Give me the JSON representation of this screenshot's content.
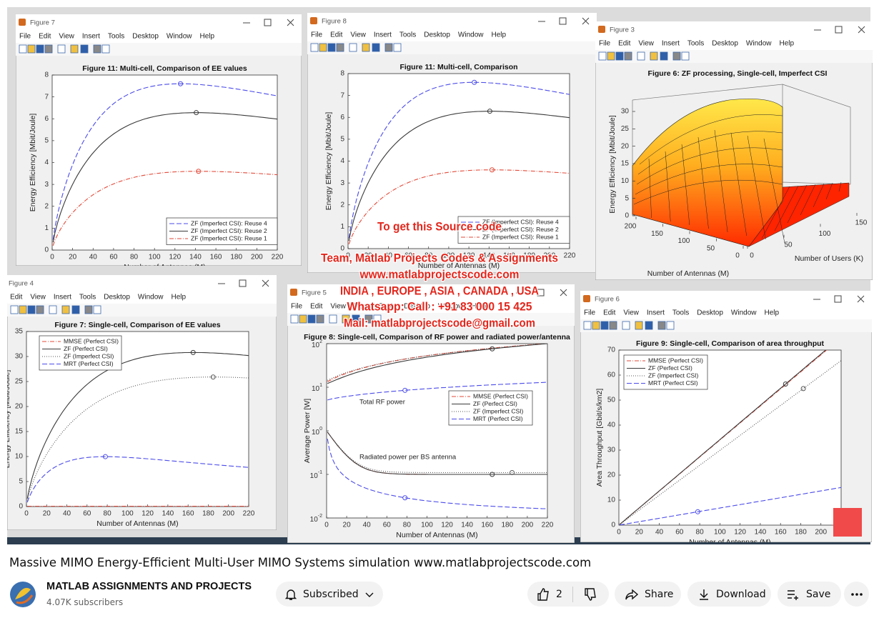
{
  "menu": [
    "File",
    "Edit",
    "View",
    "Insert",
    "Tools",
    "Desktop",
    "Window",
    "Help"
  ],
  "windows": [
    {
      "title": "Figure 7",
      "plot_title": "Figure 11: Multi-cell, Comparison of EE values",
      "xlabel": "Number of Antennas (M)",
      "ylabel": "Energy Efficiency [Mbit/Joule]",
      "xlim": [
        0,
        220
      ],
      "xticks": [
        0,
        20,
        40,
        60,
        80,
        100,
        120,
        140,
        160,
        180,
        200,
        220
      ],
      "ylim": [
        0,
        8
      ],
      "yticks": [
        0,
        1,
        2,
        3,
        4,
        5,
        6,
        7,
        8
      ],
      "legend": [
        "ZF (Imperfect CSI): Reuse 4",
        "ZF (Imperfect CSI): Reuse 2",
        "ZF (Imperfect CSI): Reuse 1"
      ]
    },
    {
      "title": "Figure 8",
      "plot_title": "Figure 11: Multi-cell, Comparison",
      "xlabel": "Number of Antennas (M)",
      "ylabel": "Energy Efficiency [Mbit/Joule]",
      "xlim": [
        0,
        220
      ],
      "xticks": [
        0,
        20,
        40,
        60,
        80,
        100,
        120,
        140,
        160,
        180,
        200,
        220
      ],
      "ylim": [
        0,
        8
      ],
      "yticks": [
        0,
        1,
        2,
        3,
        4,
        5,
        6,
        7,
        8
      ],
      "legend": [
        "ZF (Imperfect CSI): Reuse 4",
        "ZF (Imperfect CSI): Reuse 2",
        "ZF (Imperfect CSI): Reuse 1"
      ]
    },
    {
      "title": "Figure 3",
      "plot_title": "Figure 6: ZF processing, Single-cell, Imperfect CSI",
      "zlabel": "Energy Efficiency [Mbit/Joule]",
      "xlabel": "Number of Antennas (M)",
      "ylabel": "Number of Users (K)",
      "zlim": [
        0,
        30
      ],
      "zticks": [
        0,
        5,
        10,
        15,
        20,
        25,
        30
      ],
      "xlim": [
        0,
        200
      ],
      "xticks": [
        200,
        150,
        100,
        50,
        0
      ],
      "ylim": [
        0,
        150
      ],
      "yticks": [
        0,
        50,
        100,
        150
      ]
    },
    {
      "title": "Figure 4",
      "plot_title": "Figure 7: Single-cell, Comparison of EE values",
      "xlabel": "Number of Antennas (M)",
      "ylabel": "Energy Efficiency [Mbit/Joule]",
      "xlim": [
        0,
        220
      ],
      "xticks": [
        0,
        20,
        40,
        60,
        80,
        100,
        120,
        140,
        160,
        180,
        200,
        220
      ],
      "ylim": [
        0,
        35
      ],
      "yticks": [
        0,
        5,
        10,
        15,
        20,
        25,
        30,
        35
      ],
      "legend": [
        "MMSE (Perfect CSI)",
        "ZF (Perfect CSI)",
        "ZF (Imperfect CSI)",
        "MRT (Perfect CSI)"
      ]
    },
    {
      "title": "Figure 5",
      "plot_title": "Figure 8: Single-cell, Comparison of RF power and radiated power/antenna",
      "xlabel": "Number of Antennas (M)",
      "ylabel": "Average Power [W]",
      "log_y": true,
      "xlim": [
        0,
        220
      ],
      "xticks": [
        0,
        20,
        40,
        60,
        80,
        100,
        120,
        140,
        160,
        180,
        200,
        220
      ],
      "ylim": [
        0.01,
        100
      ],
      "yticks": [
        {
          "value": 0.01,
          "label": "10",
          "exponent": "-2"
        },
        {
          "value": 0.1,
          "label": "10",
          "exponent": "-1"
        },
        {
          "value": 1,
          "label": "10",
          "exponent": "0"
        },
        {
          "value": 10,
          "label": "10",
          "exponent": "1"
        },
        {
          "value": 100,
          "label": "10",
          "exponent": "2"
        }
      ],
      "annotations": [
        "Total RF power",
        "Radiated power per BS antenna"
      ],
      "legend": [
        "MMSE (Perfect CSI)",
        "ZF (Perfect CSI)",
        "ZF (Imperfect CSI)",
        "MRT (Perfect CSI)"
      ]
    },
    {
      "title": "Figure 6",
      "plot_title": "Figure 9: Single-cell, Comparison of area throughput",
      "xlabel": "Number of Antennas (M)",
      "ylabel": "Area Throughput [Gbit/s/km2]",
      "xlim": [
        0,
        220
      ],
      "xticks": [
        0,
        20,
        40,
        60,
        80,
        100,
        120,
        140,
        160,
        180,
        200
      ],
      "ylim": [
        0,
        70
      ],
      "yticks": [
        0,
        10,
        20,
        30,
        40,
        50,
        60,
        70
      ],
      "legend": [
        "MMSE (Perfect CSI)",
        "ZF (Perfect CSI)",
        "ZF (Imperfect CSI)",
        "MRT (Perfect CSI)"
      ]
    }
  ],
  "watermark": [
    "To get this Source code",
    "Team, Matlab Projects Codes & Assignments",
    "www.matlabprojectscode.com",
    "INDIA , EUROPE , ASIA , CANADA , USA",
    "Whatsapp: Call : +91 83 000 15 425",
    "Mail: matlabprojectscode@gmail.com"
  ],
  "video_title": "Massive MIMO Energy-Efficient Multi-User MIMO Systems simulation www.matlabprojectscode.com",
  "channel": {
    "name": "MATLAB ASSIGNMENTS AND PROJECTS",
    "subscribers": "4.07K subscribers"
  },
  "buttons": {
    "subscribe": "Subscribed",
    "likes": 2,
    "share": "Share",
    "download": "Download",
    "save": "Save"
  }
}
